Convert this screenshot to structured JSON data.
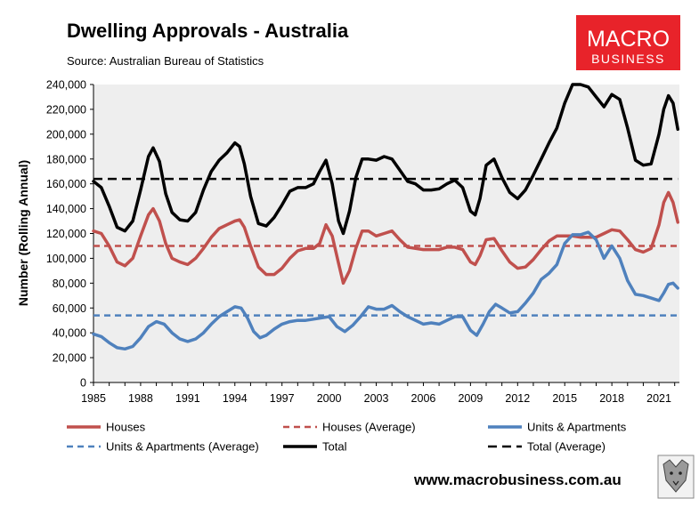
{
  "header": {
    "title": "Dwelling Approvals - Australia",
    "subtitle": "Source: Australian Bureau of Statistics"
  },
  "logo": {
    "line1": "MACRO",
    "line2": "BUSINESS",
    "color": "#e8232a"
  },
  "footer": {
    "url": "www.macrobusiness.com.au"
  },
  "colors": {
    "houses": "#c0504d",
    "units": "#4f81bd",
    "total": "#000000",
    "plot_bg": "#eeeeee"
  },
  "chart_data": {
    "type": "line",
    "ylabel": "Number (Rolling Annual)",
    "xlabel": "",
    "ylim": [
      0,
      240000
    ],
    "xlim": [
      1985,
      2022.3
    ],
    "y_ticks": [
      "0",
      "20,000",
      "40,000",
      "60,000",
      "80,000",
      "100,000",
      "120,000",
      "140,000",
      "160,000",
      "180,000",
      "200,000",
      "220,000",
      "240,000"
    ],
    "y_tick_values": [
      0,
      20000,
      40000,
      60000,
      80000,
      100000,
      120000,
      140000,
      160000,
      180000,
      200000,
      220000,
      240000
    ],
    "x_ticks": [
      "1985",
      "1988",
      "1991",
      "1994",
      "1997",
      "2000",
      "2003",
      "2006",
      "2009",
      "2012",
      "2015",
      "2018",
      "2021"
    ],
    "x_tick_values": [
      1985,
      1988,
      1991,
      1994,
      1997,
      2000,
      2003,
      2006,
      2009,
      2012,
      2015,
      2018,
      2021
    ],
    "series": [
      {
        "name": "Houses",
        "style": "solid",
        "color": "#c0504d",
        "x": [
          1985.0,
          1985.5,
          1986.0,
          1986.5,
          1987.0,
          1987.5,
          1988.0,
          1988.5,
          1988.8,
          1989.2,
          1989.6,
          1990.0,
          1990.5,
          1991.0,
          1991.5,
          1992.0,
          1992.5,
          1993.0,
          1993.5,
          1994.0,
          1994.3,
          1994.6,
          1995.0,
          1995.5,
          1996.0,
          1996.5,
          1997.0,
          1997.5,
          1998.0,
          1998.5,
          1999.0,
          1999.4,
          1999.8,
          2000.2,
          2000.6,
          2000.9,
          2001.3,
          2001.7,
          2002.1,
          2002.5,
          2003.0,
          2003.5,
          2004.0,
          2004.5,
          2005.0,
          2005.5,
          2006.0,
          2006.5,
          2007.0,
          2007.5,
          2008.0,
          2008.5,
          2009.0,
          2009.3,
          2009.6,
          2010.0,
          2010.5,
          2011.0,
          2011.5,
          2012.0,
          2012.5,
          2013.0,
          2013.5,
          2014.0,
          2014.5,
          2015.0,
          2015.5,
          2016.0,
          2016.5,
          2017.0,
          2017.5,
          2018.0,
          2018.5,
          2019.0,
          2019.5,
          2020.0,
          2020.5,
          2021.0,
          2021.3,
          2021.6,
          2021.9,
          2022.2
        ],
        "values": [
          122000,
          120000,
          110000,
          97000,
          94000,
          100000,
          118000,
          135000,
          140000,
          130000,
          112000,
          100000,
          97000,
          95000,
          100000,
          108000,
          117000,
          124000,
          127000,
          130000,
          131000,
          125000,
          110000,
          93000,
          87000,
          87000,
          92000,
          100000,
          106000,
          108000,
          108000,
          112000,
          127000,
          118000,
          96000,
          80000,
          90000,
          108000,
          122000,
          122000,
          118000,
          120000,
          122000,
          115000,
          109000,
          108000,
          107000,
          107000,
          107000,
          109000,
          109000,
          107000,
          97000,
          95000,
          102000,
          115000,
          116000,
          106000,
          97000,
          92000,
          93000,
          99000,
          107000,
          114000,
          118000,
          118000,
          118000,
          117000,
          117000,
          117000,
          120000,
          123000,
          122000,
          115000,
          107000,
          105000,
          108000,
          127000,
          145000,
          153000,
          145000,
          129000
        ]
      },
      {
        "name": "Houses (Average)",
        "style": "dashed",
        "color": "#c0504d",
        "x": [
          1985.0,
          2022.2
        ],
        "values": [
          110000,
          110000
        ]
      },
      {
        "name": "Units & Apartments",
        "style": "solid",
        "color": "#4f81bd",
        "x": [
          1985.0,
          1985.5,
          1986.0,
          1986.5,
          1987.0,
          1987.5,
          1988.0,
          1988.5,
          1989.0,
          1989.5,
          1990.0,
          1990.5,
          1991.0,
          1991.5,
          1992.0,
          1992.5,
          1993.0,
          1993.5,
          1994.0,
          1994.4,
          1994.8,
          1995.2,
          1995.6,
          1996.0,
          1996.5,
          1997.0,
          1997.5,
          1998.0,
          1998.5,
          1999.0,
          1999.5,
          2000.0,
          2000.5,
          2001.0,
          2001.5,
          2002.0,
          2002.5,
          2003.0,
          2003.5,
          2004.0,
          2004.5,
          2005.0,
          2005.5,
          2006.0,
          2006.5,
          2007.0,
          2007.5,
          2008.0,
          2008.5,
          2009.0,
          2009.4,
          2009.8,
          2010.2,
          2010.6,
          2011.0,
          2011.5,
          2012.0,
          2012.5,
          2013.0,
          2013.5,
          2014.0,
          2014.5,
          2015.0,
          2015.5,
          2016.0,
          2016.5,
          2017.0,
          2017.5,
          2018.0,
          2018.5,
          2019.0,
          2019.5,
          2020.0,
          2020.5,
          2021.0,
          2021.3,
          2021.6,
          2021.9,
          2022.2
        ],
        "values": [
          39000,
          37000,
          32000,
          28000,
          27000,
          29000,
          36000,
          45000,
          49000,
          47000,
          40000,
          35000,
          33000,
          35000,
          40000,
          47000,
          53000,
          57000,
          61000,
          60000,
          52000,
          41000,
          36000,
          38000,
          43000,
          47000,
          49000,
          50000,
          50000,
          51000,
          52000,
          53000,
          45000,
          41000,
          46000,
          53000,
          61000,
          59000,
          59000,
          62000,
          57000,
          53000,
          50000,
          47000,
          48000,
          47000,
          50000,
          53000,
          53000,
          42000,
          38000,
          47000,
          57000,
          63000,
          60000,
          56000,
          57000,
          64000,
          72000,
          83000,
          88000,
          95000,
          112000,
          119000,
          119000,
          121000,
          115000,
          100000,
          110000,
          100000,
          82000,
          71000,
          70000,
          68000,
          66000,
          72000,
          79000,
          80000,
          76000
        ]
      },
      {
        "name": "Units & Apartments (Average)",
        "style": "dashed",
        "color": "#4f81bd",
        "x": [
          1985.0,
          2022.2
        ],
        "values": [
          54000,
          54000
        ]
      },
      {
        "name": "Total",
        "style": "solid",
        "color": "#000000",
        "x": [
          1985.0,
          1985.5,
          1986.0,
          1986.5,
          1987.0,
          1987.5,
          1988.0,
          1988.5,
          1988.8,
          1989.2,
          1989.6,
          1990.0,
          1990.5,
          1991.0,
          1991.5,
          1992.0,
          1992.5,
          1993.0,
          1993.5,
          1994.0,
          1994.3,
          1994.6,
          1995.0,
          1995.5,
          1996.0,
          1996.5,
          1997.0,
          1997.5,
          1998.0,
          1998.5,
          1999.0,
          1999.4,
          1999.8,
          2000.2,
          2000.6,
          2000.9,
          2001.3,
          2001.7,
          2002.1,
          2002.5,
          2003.0,
          2003.5,
          2004.0,
          2004.5,
          2005.0,
          2005.5,
          2006.0,
          2006.5,
          2007.0,
          2007.5,
          2008.0,
          2008.5,
          2009.0,
          2009.3,
          2009.6,
          2010.0,
          2010.5,
          2011.0,
          2011.5,
          2012.0,
          2012.5,
          2013.0,
          2013.5,
          2014.0,
          2014.5,
          2015.0,
          2015.5,
          2016.0,
          2016.5,
          2017.0,
          2017.5,
          2018.0,
          2018.5,
          2019.0,
          2019.5,
          2020.0,
          2020.5,
          2021.0,
          2021.3,
          2021.6,
          2021.9,
          2022.2
        ],
        "values": [
          162000,
          157000,
          142000,
          125000,
          122000,
          130000,
          155000,
          182000,
          189000,
          178000,
          152000,
          137000,
          131000,
          130000,
          137000,
          155000,
          170000,
          179000,
          185000,
          193000,
          190000,
          176000,
          150000,
          128000,
          126000,
          133000,
          143000,
          154000,
          157000,
          157000,
          160000,
          170000,
          179000,
          160000,
          130000,
          120000,
          138000,
          165000,
          180000,
          180000,
          179000,
          182000,
          180000,
          171000,
          162000,
          160000,
          155000,
          155000,
          156000,
          160000,
          163000,
          157000,
          138000,
          135000,
          148000,
          175000,
          180000,
          165000,
          153000,
          148000,
          155000,
          167000,
          180000,
          193000,
          205000,
          225000,
          240000,
          240000,
          238000,
          230000,
          222000,
          232000,
          228000,
          205000,
          179000,
          175000,
          176000,
          200000,
          220000,
          231000,
          225000,
          204000
        ]
      },
      {
        "name": "Total (Average)",
        "style": "dashed",
        "color": "#000000",
        "x": [
          1985.0,
          2022.2
        ],
        "values": [
          164000,
          164000
        ]
      }
    ],
    "legend_position": "bottom"
  }
}
